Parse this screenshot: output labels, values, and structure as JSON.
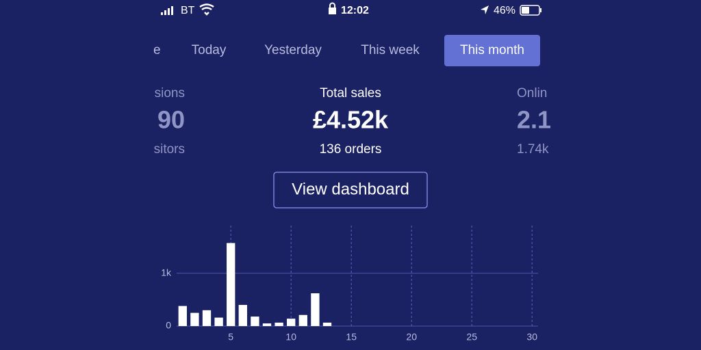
{
  "status_bar": {
    "carrier": "BT",
    "time": "12:02",
    "battery": "46%"
  },
  "tabs": [
    "e",
    "Today",
    "Yesterday",
    "This week",
    "This month"
  ],
  "stats": {
    "left": {
      "label": "sions",
      "value": "90",
      "sub": "sitors"
    },
    "center": {
      "label": "Total sales",
      "value": "£4.52k",
      "sub": "136 orders"
    },
    "right": {
      "label": "Onlin",
      "value": "2.1",
      "sub": "1.74k"
    }
  },
  "button": "View dashboard",
  "chart_data": {
    "type": "bar",
    "color": "#ffffff",
    "x": [
      1,
      2,
      3,
      4,
      5,
      6,
      7,
      8,
      9,
      10,
      11,
      12,
      13,
      14,
      15,
      16,
      17,
      18,
      19,
      20,
      21,
      22,
      23,
      24,
      25,
      26,
      27,
      28,
      29,
      30
    ],
    "values": [
      380,
      250,
      300,
      160,
      1570,
      400,
      180,
      50,
      65,
      140,
      210,
      620,
      65,
      0,
      0,
      0,
      0,
      0,
      0,
      0,
      0,
      0,
      0,
      0,
      0,
      0,
      0,
      0,
      0,
      0
    ],
    "xlim": [
      0.5,
      30.5
    ],
    "xticks": [
      5,
      10,
      15,
      20,
      25,
      30
    ],
    "ylim": [
      0,
      1900
    ],
    "yticks": [
      0,
      {
        "value": 1000,
        "label": "1k"
      }
    ],
    "grid": true
  }
}
